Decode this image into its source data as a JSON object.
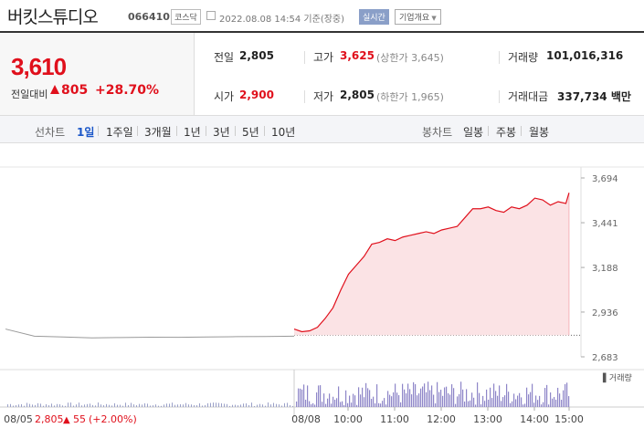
{
  "header": {
    "name": "버킷스튜디오",
    "code": "066410",
    "market": "코스닥",
    "datetime": "2022.08.08 14:54 기준(장중)",
    "realtime": "실시간",
    "corp_info": "기업개요"
  },
  "price": {
    "current": "3,610",
    "change_label": "전일대비",
    "change": "805",
    "change_pct": "+28.70%"
  },
  "stats": {
    "prev_label": "전일",
    "prev": "2,805",
    "high_label": "고가",
    "high": "3,625",
    "upper_limit": "(상한가 3,645)",
    "volume_label": "거래량",
    "volume": "101,016,316",
    "open_label": "시가",
    "open": "2,900",
    "low_label": "저가",
    "low": "2,805",
    "lower_limit": "(하한가 1,965)",
    "amount_label": "거래대금",
    "amount": "337,734 백만"
  },
  "tabs": {
    "line_label": "선차트",
    "line": [
      "1일",
      "1주일",
      "3개월",
      "1년",
      "3년",
      "5년",
      "10년"
    ],
    "candle_label": "봉차트",
    "candle": [
      "일봉",
      "주봉",
      "월봉"
    ]
  },
  "chart_data": {
    "type": "line",
    "y_ticks": [
      "3,694",
      "3,441",
      "3,188",
      "2,936",
      "2,683"
    ],
    "ylim": [
      2683,
      3694
    ],
    "prev_close": 2805,
    "x_labels": [
      "08/05",
      "08/08",
      "10:00",
      "11:00",
      "12:00",
      "13:00",
      "14:00",
      "15:00"
    ],
    "prev_day": {
      "x": [
        0,
        0.1,
        0.2,
        0.3,
        0.4,
        0.5,
        0.6,
        0.7,
        0.8,
        0.9,
        1
      ],
      "values": [
        2840,
        2800,
        2795,
        2790,
        2792,
        2794,
        2793,
        2795,
        2797,
        2798,
        2800
      ]
    },
    "today": {
      "x": [
        "09:00",
        "09:10",
        "09:20",
        "09:30",
        "09:40",
        "09:50",
        "10:00",
        "10:10",
        "10:20",
        "10:30",
        "10:40",
        "10:50",
        "11:00",
        "11:10",
        "11:20",
        "11:30",
        "11:40",
        "11:50",
        "12:00",
        "12:10",
        "12:20",
        "12:30",
        "12:40",
        "12:50",
        "13:00",
        "13:10",
        "13:20",
        "13:30",
        "13:40",
        "13:50",
        "14:00",
        "14:10",
        "14:20",
        "14:30",
        "14:40",
        "14:50",
        "14:54"
      ],
      "values": [
        2840,
        2825,
        2830,
        2850,
        2900,
        2960,
        3060,
        3150,
        3200,
        3250,
        3320,
        3330,
        3350,
        3340,
        3360,
        3370,
        3380,
        3390,
        3380,
        3400,
        3410,
        3420,
        3470,
        3520,
        3520,
        3530,
        3510,
        3500,
        3530,
        3520,
        3540,
        3580,
        3570,
        3540,
        3560,
        3550,
        3610
      ]
    },
    "prev_day_summary": {
      "date": "08/05",
      "close": "2,805",
      "change": "55",
      "pct": "(+2.00%)"
    },
    "volume_label": "거래량",
    "line_color": "#e0101c",
    "fill_color": "#fbe3e5",
    "prev_color": "#999999"
  }
}
